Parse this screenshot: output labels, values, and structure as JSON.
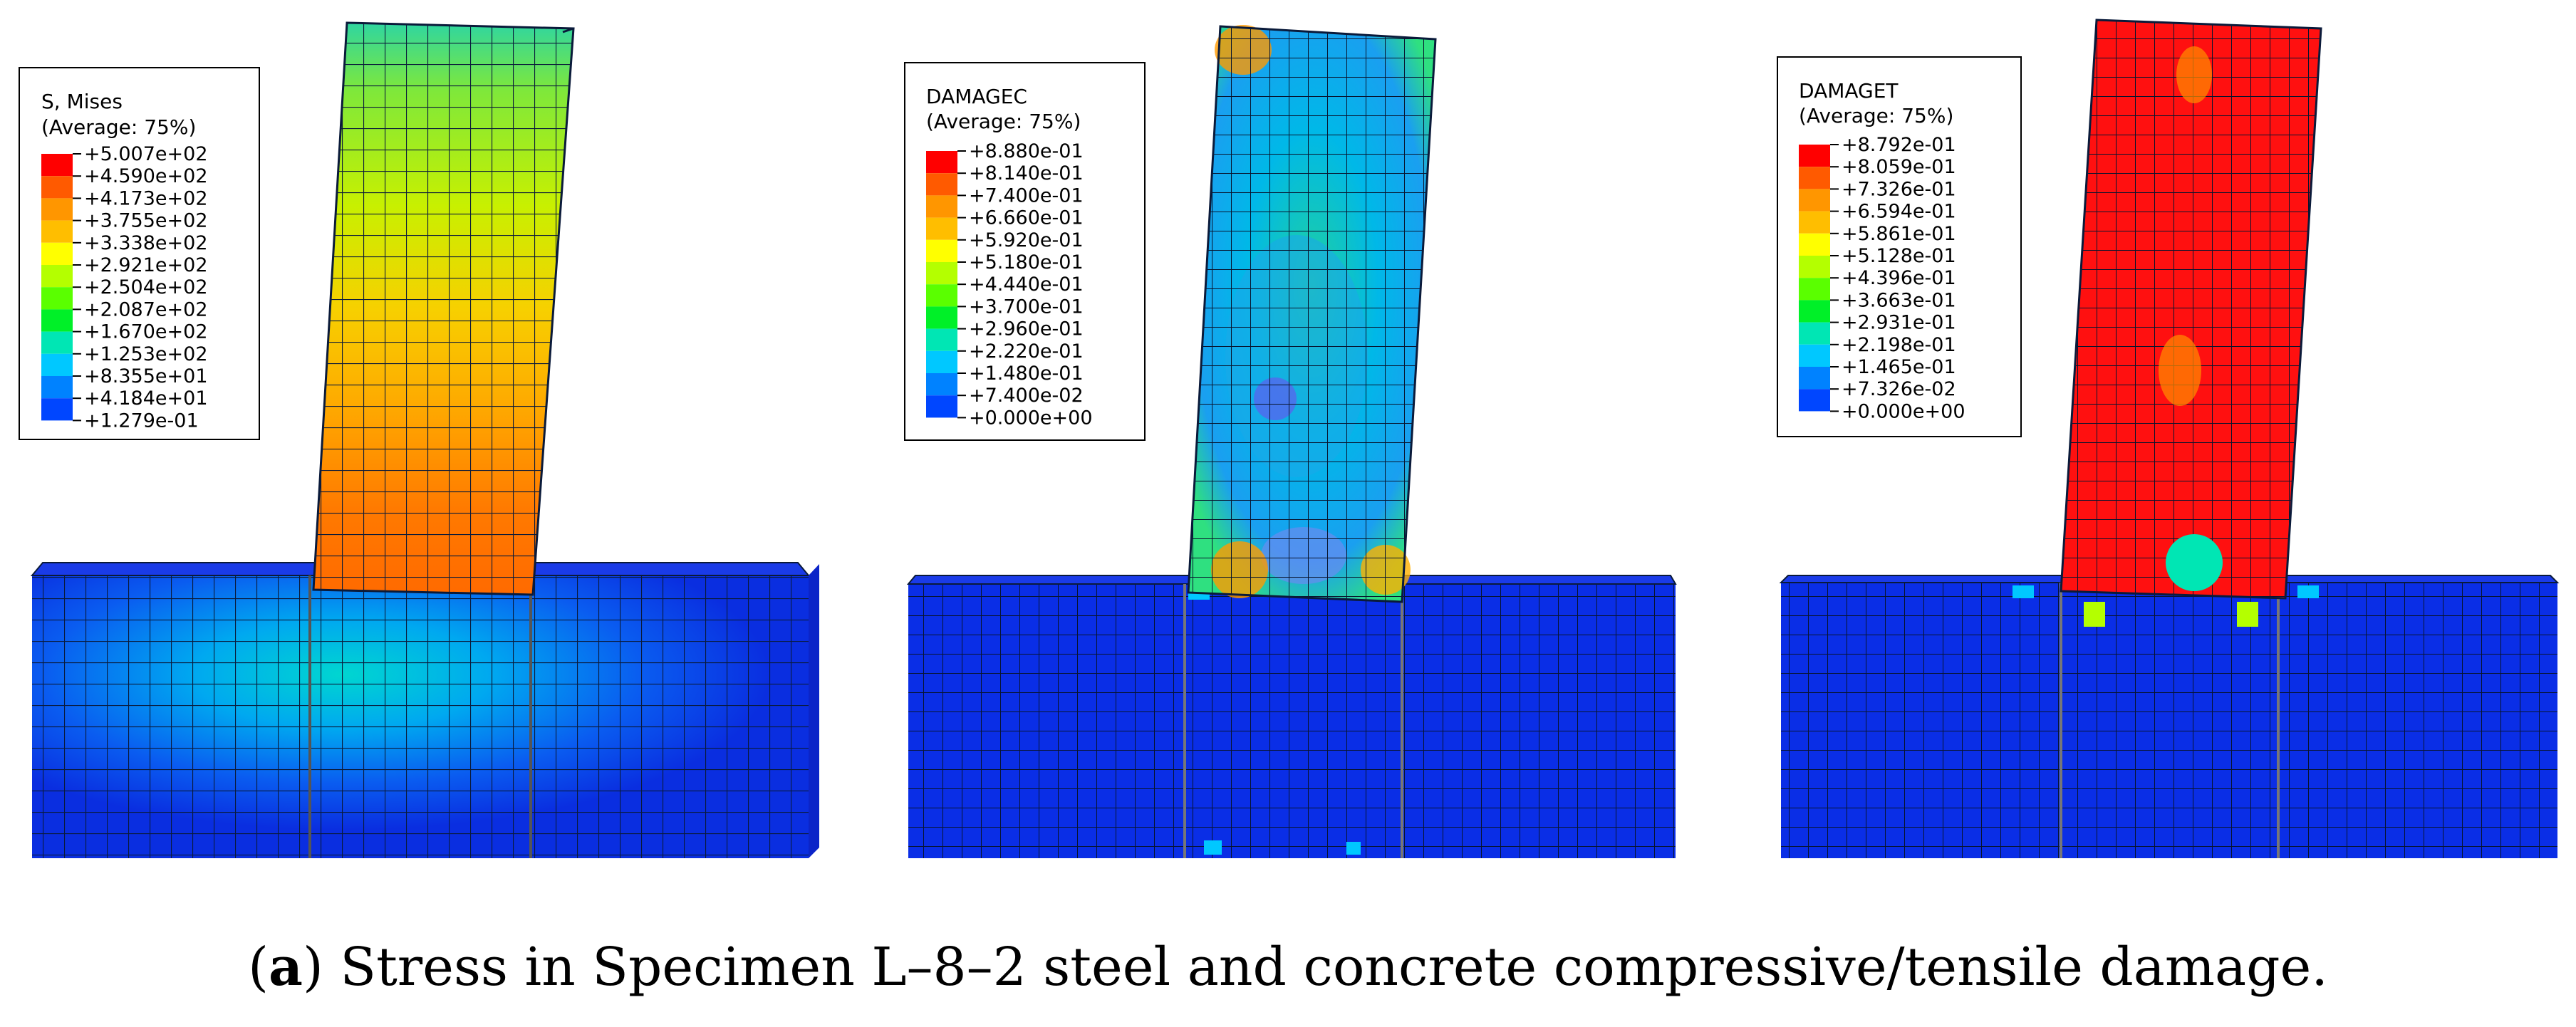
{
  "figure": {
    "caption_label": "a",
    "caption_text": "Stress in Specimen L–8–2 steel and concrete compressive/tensile damage."
  },
  "panels": [
    {
      "legend": {
        "title": "S, Mises",
        "subtitle": "(Average: 75%)",
        "values": [
          "+5.007e+02",
          "+4.590e+02",
          "+4.173e+02",
          "+3.755e+02",
          "+3.338e+02",
          "+2.921e+02",
          "+2.504e+02",
          "+2.087e+02",
          "+1.670e+02",
          "+1.253e+02",
          "+8.355e+01",
          "+4.184e+01",
          "+1.279e-01"
        ]
      }
    },
    {
      "legend": {
        "title": "DAMAGEC",
        "subtitle": "(Average: 75%)",
        "values": [
          "+8.880e-01",
          "+8.140e-01",
          "+7.400e-01",
          "+6.660e-01",
          "+5.920e-01",
          "+5.180e-01",
          "+4.440e-01",
          "+3.700e-01",
          "+2.960e-01",
          "+2.220e-01",
          "+1.480e-01",
          "+7.400e-02",
          "+0.000e+00"
        ]
      }
    },
    {
      "legend": {
        "title": "DAMAGET",
        "subtitle": "(Average: 75%)",
        "values": [
          "+8.792e-01",
          "+8.059e-01",
          "+7.326e-01",
          "+6.594e-01",
          "+5.861e-01",
          "+5.128e-01",
          "+4.396e-01",
          "+3.663e-01",
          "+2.931e-01",
          "+2.198e-01",
          "+1.465e-01",
          "+7.326e-02",
          "+0.000e+00"
        ]
      }
    }
  ],
  "colors": {
    "contour": [
      "#ff0000",
      "#ff5a00",
      "#ff9600",
      "#ffbe00",
      "#ffff00",
      "#b4ff00",
      "#5aff00",
      "#00f028",
      "#00e6b4",
      "#00c8ff",
      "#0082ff",
      "#0046ff",
      "#0000ff"
    ],
    "background": "#ffffff"
  }
}
